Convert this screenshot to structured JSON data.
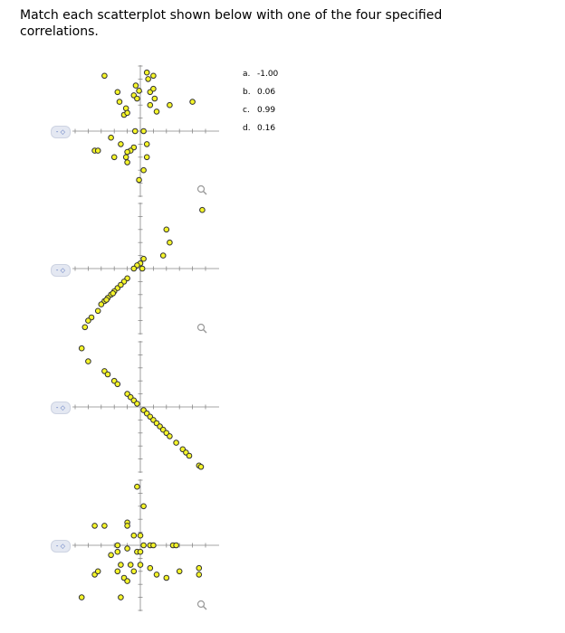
{
  "question": {
    "text": "Match each scatterplot shown below with one of the four specified correlations."
  },
  "options": [
    {
      "letter": "a.",
      "value": "-1.00"
    },
    {
      "letter": "b.",
      "value": "0.06"
    },
    {
      "letter": "c.",
      "value": "0.99"
    },
    {
      "letter": "d.",
      "value": "0.16"
    }
  ],
  "selector_text": "- ◇",
  "colors": {
    "point_fill": "#f5f528",
    "point_stroke": "#333333",
    "axis": "#888888",
    "selector_bg": "#e4e8f2"
  },
  "icons": {
    "zoom": "magnifier-icon",
    "selector": "dropdown-selector"
  },
  "chart_data": [
    {
      "type": "scatter",
      "points": [
        [
          -5.5,
          8.5
        ],
        [
          -3.5,
          6
        ],
        [
          -3.2,
          4.5
        ],
        [
          -2.5,
          2.5
        ],
        [
          -2.2,
          3.5
        ],
        [
          -2,
          2.8
        ],
        [
          -1,
          5.5
        ],
        [
          -0.7,
          7
        ],
        [
          -0.5,
          5
        ],
        [
          -0.2,
          6.2
        ],
        [
          1,
          9
        ],
        [
          1.2,
          8
        ],
        [
          1.5,
          6
        ],
        [
          1.5,
          4
        ],
        [
          2,
          8.5
        ],
        [
          2,
          6.5
        ],
        [
          2.2,
          5
        ],
        [
          2.5,
          3
        ],
        [
          4.5,
          4
        ],
        [
          8,
          4.5
        ],
        [
          -0.8,
          0
        ],
        [
          0.5,
          0
        ],
        [
          1,
          -2
        ],
        [
          -1,
          -2.5
        ],
        [
          -1.5,
          -3
        ],
        [
          -2,
          -3.2
        ],
        [
          -2.2,
          -4
        ],
        [
          -2,
          -4.8
        ],
        [
          -3,
          -2
        ],
        [
          -4.5,
          -1
        ],
        [
          -7,
          -3
        ],
        [
          -6.5,
          -3
        ],
        [
          0.5,
          -6
        ],
        [
          -0.2,
          -7.5
        ],
        [
          1,
          -4
        ],
        [
          -4,
          -4
        ]
      ]
    },
    {
      "type": "scatter",
      "points": [
        [
          9.5,
          9
        ],
        [
          4,
          6
        ],
        [
          4.5,
          4
        ],
        [
          3.5,
          2
        ],
        [
          0.5,
          1.5
        ],
        [
          0,
          0.8
        ],
        [
          -0.5,
          0.5
        ],
        [
          -1,
          0
        ],
        [
          -2,
          -1.5
        ],
        [
          -2.5,
          -2
        ],
        [
          -3.5,
          -3
        ],
        [
          -4,
          -3.5
        ],
        [
          -4.5,
          -4
        ],
        [
          -5,
          -4.5
        ],
        [
          -5.5,
          -5
        ],
        [
          -6,
          -5.5
        ],
        [
          -6.5,
          -6.5
        ],
        [
          -7.5,
          -7.5
        ],
        [
          -8,
          -8
        ],
        [
          -8.5,
          -9
        ],
        [
          0.3,
          0
        ],
        [
          -3,
          -2.5
        ],
        [
          -4.2,
          -3.8
        ],
        [
          -5.2,
          -4.8
        ]
      ]
    },
    {
      "type": "scatter",
      "points": [
        [
          -9,
          9
        ],
        [
          -8,
          7
        ],
        [
          -5.5,
          5.5
        ],
        [
          -5,
          5
        ],
        [
          -4,
          4
        ],
        [
          -3.5,
          3.5
        ],
        [
          -2,
          2
        ],
        [
          -1.5,
          1.5
        ],
        [
          -1,
          1
        ],
        [
          -0.5,
          0.5
        ],
        [
          0.5,
          -0.5
        ],
        [
          1,
          -1
        ],
        [
          1.5,
          -1.5
        ],
        [
          2,
          -2
        ],
        [
          2.5,
          -2.5
        ],
        [
          3,
          -3
        ],
        [
          3.5,
          -3.5
        ],
        [
          4,
          -4
        ],
        [
          4.5,
          -4.5
        ],
        [
          5.5,
          -5.5
        ],
        [
          6.5,
          -6.5
        ],
        [
          7,
          -7
        ],
        [
          7.5,
          -7.5
        ],
        [
          9,
          -9
        ],
        [
          9.3,
          -9.2
        ]
      ]
    },
    {
      "type": "scatter",
      "points": [
        [
          -0.5,
          9
        ],
        [
          0.5,
          6
        ],
        [
          -2,
          3.5
        ],
        [
          -2,
          3
        ],
        [
          -7,
          3
        ],
        [
          -5.5,
          3
        ],
        [
          -1,
          1.5
        ],
        [
          0,
          1.5
        ],
        [
          -3.5,
          0
        ],
        [
          -2,
          -0.5
        ],
        [
          0.5,
          0
        ],
        [
          1.5,
          0
        ],
        [
          2,
          0
        ],
        [
          5,
          0
        ],
        [
          5.5,
          0
        ],
        [
          -4.5,
          -1.5
        ],
        [
          -3.5,
          -1
        ],
        [
          -0.5,
          -1
        ],
        [
          0,
          -1
        ],
        [
          -3,
          -3
        ],
        [
          -1.5,
          -3
        ],
        [
          0,
          -3
        ],
        [
          -7,
          -4.5
        ],
        [
          -6.5,
          -4
        ],
        [
          -3.5,
          -4
        ],
        [
          -2.5,
          -5
        ],
        [
          -2,
          -5.5
        ],
        [
          -1,
          -4
        ],
        [
          1.5,
          -3.5
        ],
        [
          2.5,
          -4.5
        ],
        [
          4,
          -5
        ],
        [
          6,
          -4
        ],
        [
          9,
          -3.5
        ],
        [
          9,
          -4.5
        ],
        [
          -9,
          -8
        ],
        [
          -3,
          -8
        ]
      ]
    }
  ]
}
